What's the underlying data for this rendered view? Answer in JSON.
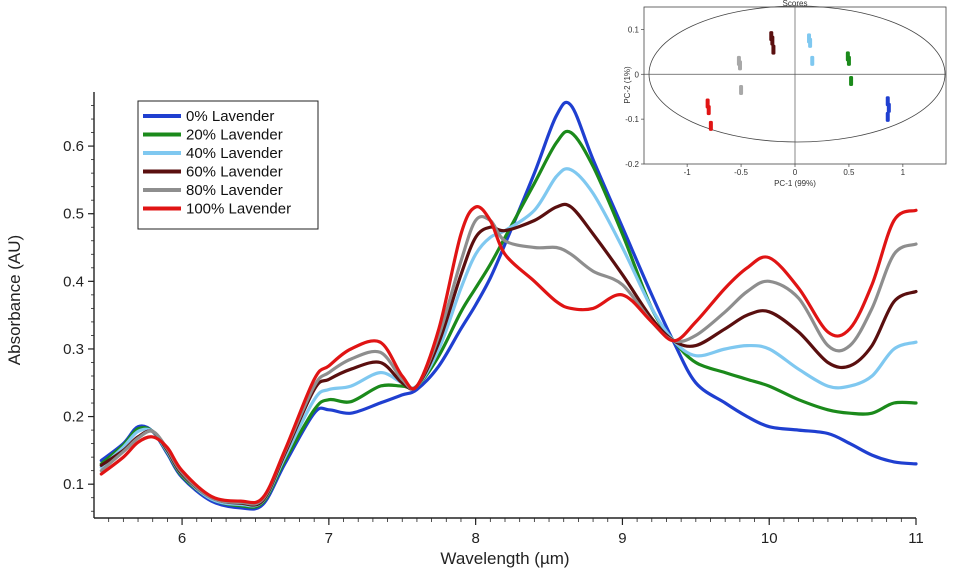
{
  "chart_data": [
    {
      "type": "line",
      "xlabel": "Wavelength (µm)",
      "ylabel": "Absorbance (AU)",
      "xlim": [
        5.4,
        11.0
      ],
      "ylim": [
        0.05,
        0.68
      ],
      "xticks": [
        "6",
        "7",
        "8",
        "9",
        "10",
        "11"
      ],
      "yticks": [
        "0.1",
        "0.2",
        "0.3",
        "0.4",
        "0.5",
        "0.6"
      ],
      "grid": false,
      "legend_position": "top-left",
      "x": [
        5.45,
        5.6,
        5.7,
        5.8,
        5.9,
        6.0,
        6.2,
        6.4,
        6.55,
        6.7,
        6.9,
        7.0,
        7.15,
        7.35,
        7.5,
        7.6,
        7.75,
        7.9,
        8.0,
        8.1,
        8.2,
        8.4,
        8.55,
        8.65,
        8.8,
        9.0,
        9.2,
        9.35,
        9.5,
        9.7,
        9.85,
        10.0,
        10.2,
        10.4,
        10.55,
        10.7,
        10.85,
        11.0
      ],
      "series": [
        {
          "name": "0% Lavender",
          "color": "#1f3fd0",
          "values": [
            0.135,
            0.16,
            0.185,
            0.178,
            0.145,
            0.11,
            0.075,
            0.065,
            0.07,
            0.13,
            0.205,
            0.21,
            0.205,
            0.22,
            0.232,
            0.24,
            0.275,
            0.33,
            0.365,
            0.405,
            0.455,
            0.56,
            0.645,
            0.66,
            0.58,
            0.48,
            0.38,
            0.31,
            0.25,
            0.22,
            0.2,
            0.185,
            0.18,
            0.175,
            0.16,
            0.143,
            0.133,
            0.13
          ]
        },
        {
          "name": "20% Lavender",
          "color": "#1b8a1b",
          "values": [
            0.13,
            0.158,
            0.182,
            0.178,
            0.147,
            0.112,
            0.078,
            0.068,
            0.073,
            0.135,
            0.21,
            0.225,
            0.222,
            0.245,
            0.245,
            0.245,
            0.29,
            0.355,
            0.39,
            0.425,
            0.465,
            0.545,
            0.605,
            0.62,
            0.57,
            0.47,
            0.36,
            0.312,
            0.28,
            0.265,
            0.255,
            0.245,
            0.225,
            0.21,
            0.205,
            0.205,
            0.22,
            0.22
          ]
        },
        {
          "name": "40% Lavender",
          "color": "#7fc8f0",
          "values": [
            0.125,
            0.155,
            0.178,
            0.178,
            0.148,
            0.114,
            0.078,
            0.07,
            0.075,
            0.14,
            0.225,
            0.24,
            0.245,
            0.265,
            0.25,
            0.245,
            0.3,
            0.39,
            0.44,
            0.465,
            0.475,
            0.505,
            0.555,
            0.565,
            0.53,
            0.45,
            0.36,
            0.312,
            0.29,
            0.3,
            0.305,
            0.3,
            0.27,
            0.245,
            0.245,
            0.26,
            0.3,
            0.31
          ]
        },
        {
          "name": "60% Lavender",
          "color": "#5a0f0f",
          "values": [
            0.128,
            0.15,
            0.17,
            0.178,
            0.15,
            0.115,
            0.08,
            0.072,
            0.076,
            0.145,
            0.24,
            0.255,
            0.27,
            0.28,
            0.25,
            0.245,
            0.31,
            0.41,
            0.465,
            0.48,
            0.475,
            0.49,
            0.51,
            0.51,
            0.47,
            0.41,
            0.345,
            0.312,
            0.305,
            0.33,
            0.35,
            0.355,
            0.325,
            0.28,
            0.275,
            0.305,
            0.37,
            0.385
          ]
        },
        {
          "name": "80% Lavender",
          "color": "#8e8e8e",
          "values": [
            0.12,
            0.148,
            0.168,
            0.178,
            0.152,
            0.117,
            0.08,
            0.073,
            0.078,
            0.148,
            0.245,
            0.265,
            0.285,
            0.295,
            0.255,
            0.245,
            0.32,
            0.43,
            0.49,
            0.49,
            0.46,
            0.45,
            0.45,
            0.44,
            0.415,
            0.395,
            0.34,
            0.312,
            0.32,
            0.355,
            0.385,
            0.4,
            0.375,
            0.305,
            0.305,
            0.36,
            0.44,
            0.455
          ]
        },
        {
          "name": "100% Lavender",
          "color": "#e01414",
          "values": [
            0.115,
            0.14,
            0.162,
            0.17,
            0.154,
            0.12,
            0.082,
            0.075,
            0.08,
            0.15,
            0.255,
            0.275,
            0.3,
            0.31,
            0.26,
            0.245,
            0.33,
            0.47,
            0.51,
            0.49,
            0.44,
            0.4,
            0.37,
            0.36,
            0.36,
            0.38,
            0.34,
            0.312,
            0.34,
            0.39,
            0.42,
            0.435,
            0.39,
            0.325,
            0.33,
            0.395,
            0.49,
            0.505
          ]
        }
      ]
    },
    {
      "type": "scatter",
      "title": "Scores",
      "xlabel": "PC-1 (99%)",
      "ylabel": "PC-2 (1%)",
      "xlim": [
        -1.4,
        1.4
      ],
      "ylim": [
        -0.2,
        0.15
      ],
      "xticks": [
        "-1",
        "-0.5",
        "0",
        "0.5",
        "1"
      ],
      "yticks": [
        "0.1",
        "0",
        "-0.1",
        "-0.2"
      ],
      "series": [
        {
          "name": "0% Lavender",
          "color": "#1f3fd0",
          "x": [
            0.86,
            0.87,
            0.86
          ],
          "y": [
            -0.06,
            -0.075,
            -0.095
          ]
        },
        {
          "name": "20% Lavender",
          "color": "#1b8a1b",
          "x": [
            0.49,
            0.5,
            0.52
          ],
          "y": [
            0.04,
            0.03,
            -0.015
          ]
        },
        {
          "name": "40% Lavender",
          "color": "#7fc8f0",
          "x": [
            0.13,
            0.14,
            0.16
          ],
          "y": [
            0.08,
            0.07,
            0.03
          ]
        },
        {
          "name": "60% Lavender",
          "color": "#5a0f0f",
          "x": [
            -0.22,
            -0.21,
            -0.2
          ],
          "y": [
            0.085,
            0.075,
            0.055
          ]
        },
        {
          "name": "80% Lavender",
          "color": "#a8a8a8",
          "x": [
            -0.52,
            -0.51,
            -0.5
          ],
          "y": [
            0.03,
            0.02,
            -0.035
          ]
        },
        {
          "name": "100% Lavender",
          "color": "#e01414",
          "x": [
            -0.81,
            -0.8,
            -0.78
          ],
          "y": [
            -0.065,
            -0.08,
            -0.115
          ]
        }
      ]
    }
  ]
}
